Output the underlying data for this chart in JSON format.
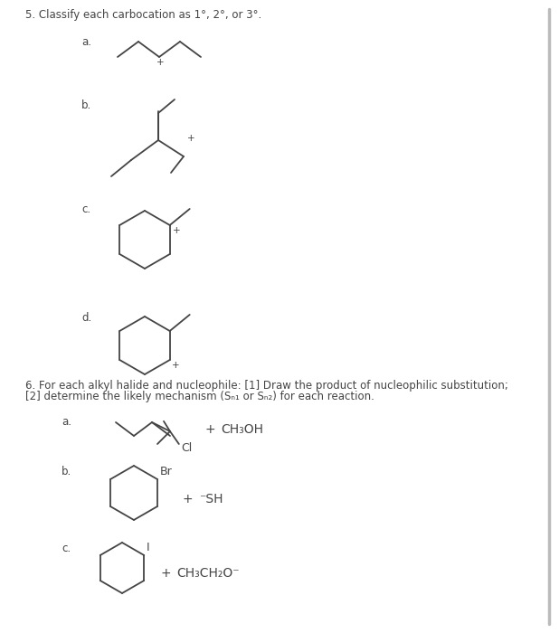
{
  "bg_color": "#ffffff",
  "title5": "5. Classify each carbocation as 1°, 2°, or 3°.",
  "title6_line1": "6. For each alkyl halide and nucleophile: [1] Draw the product of nucleophilic substitution;",
  "title6_line2": "[2] determine the likely mechanism (Sₙ₁ or Sₙ₂) for each reaction.",
  "label_a5": "a.",
  "label_b5": "b.",
  "label_c5": "c.",
  "label_d5": "d.",
  "label_a6": "a.",
  "label_b6": "b.",
  "label_c6": "c.",
  "line_color": "#444444",
  "font_size_main": 8.5,
  "font_size_label": 8.5
}
